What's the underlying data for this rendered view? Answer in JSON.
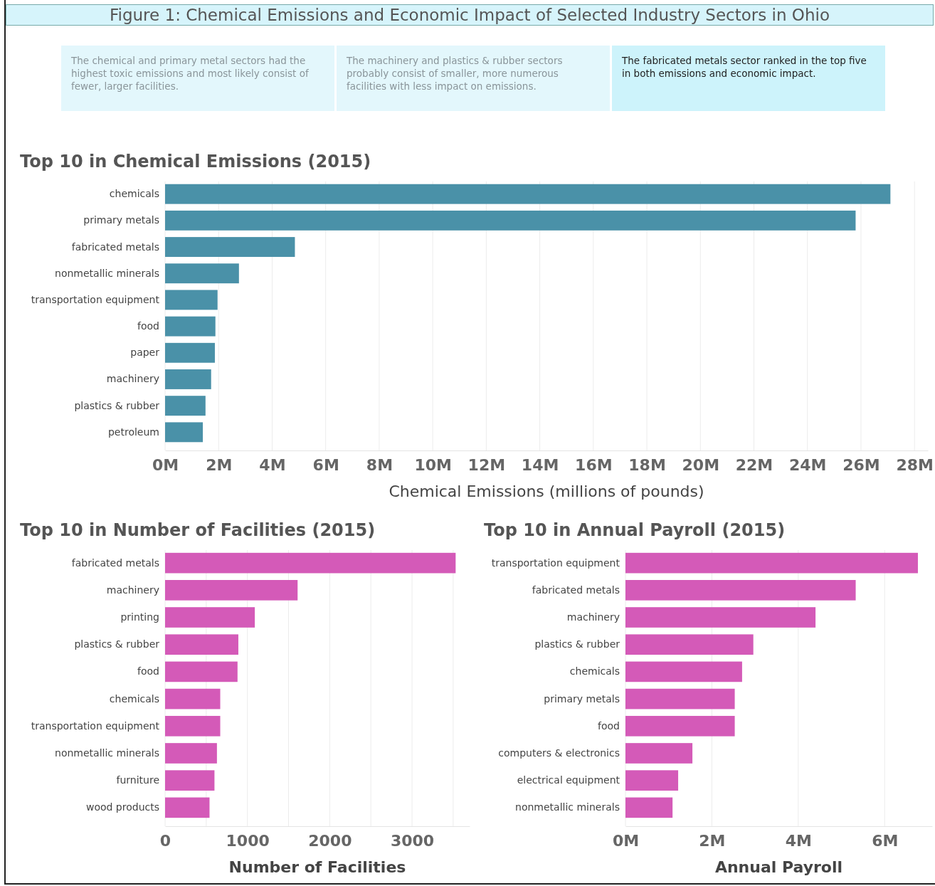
{
  "chart_data": [
    {
      "type": "other",
      "title": "Figure 1: Chemical Emissions and Economic Impact of Selected Industry Sectors in Ohio",
      "annotations": [
        "The chemical and primary metal sectors had the highest toxic emissions and most likely consist of fewer, larger facilities.",
        "The machinery and plastics & rubber sectors probably consist of smaller, more numerous facilities with less impact on emissions.",
        "The fabricated metals sector ranked in the top five in both emissions and economic impact."
      ]
    },
    {
      "type": "bar",
      "orientation": "horizontal",
      "title": "Top 10 in Chemical Emissions (2015)",
      "xlabel": "Chemical Emissions (millions of pounds)",
      "categories": [
        "chemicals",
        "primary metals",
        "fabricated metals",
        "nonmetallic minerals",
        "transportation equipment",
        "food",
        "paper",
        "machinery",
        "plastics & rubber",
        "petroleum"
      ],
      "values": [
        27.1,
        25.8,
        4.85,
        2.76,
        1.96,
        1.88,
        1.86,
        1.72,
        1.51,
        1.41
      ],
      "color": "#4a91a8",
      "xlim": [
        0,
        28.5
      ],
      "xticks": [
        {
          "value": 0,
          "label": "0M"
        },
        {
          "value": 2,
          "label": "2M"
        },
        {
          "value": 4,
          "label": "4M"
        },
        {
          "value": 6,
          "label": "6M"
        },
        {
          "value": 8,
          "label": "8M"
        },
        {
          "value": 10,
          "label": "10M"
        },
        {
          "value": 12,
          "label": "12M"
        },
        {
          "value": 14,
          "label": "14M"
        },
        {
          "value": 16,
          "label": "16M"
        },
        {
          "value": 18,
          "label": "18M"
        },
        {
          "value": 20,
          "label": "20M"
        },
        {
          "value": 22,
          "label": "22M"
        },
        {
          "value": 24,
          "label": "24M"
        },
        {
          "value": 26,
          "label": "26M"
        },
        {
          "value": 28,
          "label": "28M"
        }
      ],
      "grid": "x"
    },
    {
      "type": "bar",
      "orientation": "horizontal",
      "title": "Top 10 in Number of Facilities (2015)",
      "xlabel": "Number of Facilities",
      "categories": [
        "fabricated metals",
        "machinery",
        "printing",
        "plastics & rubber",
        "food",
        "chemicals",
        "transportation equipment",
        "nonmetallic minerals",
        "furniture",
        "wood products"
      ],
      "values": [
        3530,
        1610,
        1090,
        890,
        880,
        670,
        670,
        630,
        600,
        540
      ],
      "color": "#d45ab8",
      "xlim": [
        0,
        3700
      ],
      "xticks": [
        0,
        {
          "value": 500,
          "label": null
        },
        1000,
        {
          "value": 1500,
          "label": null
        },
        2000,
        {
          "value": 2500,
          "label": null
        },
        3000,
        {
          "value": 3500,
          "label": null
        }
      ],
      "grid": "x"
    },
    {
      "type": "bar",
      "orientation": "horizontal",
      "title": "Top 10 in Annual Payroll (2015)",
      "xlabel": "Annual Payroll",
      "categories": [
        "transportation equipment",
        "fabricated metals",
        "machinery",
        "plastics & rubber",
        "chemicals",
        "primary metals",
        "food",
        "computers & electronics",
        "electrical equipment",
        "nonmetallic minerals"
      ],
      "values": [
        6.77,
        5.33,
        4.4,
        2.96,
        2.7,
        2.53,
        2.53,
        1.55,
        1.22,
        1.09
      ],
      "color": "#d45ab8",
      "xlim": [
        0,
        7.1
      ],
      "xticks": [
        {
          "value": 0,
          "label": "0M"
        },
        {
          "value": 2,
          "label": "2M"
        },
        {
          "value": 4,
          "label": "4M"
        },
        {
          "value": 6,
          "label": "6M"
        }
      ],
      "grid": "x"
    }
  ]
}
